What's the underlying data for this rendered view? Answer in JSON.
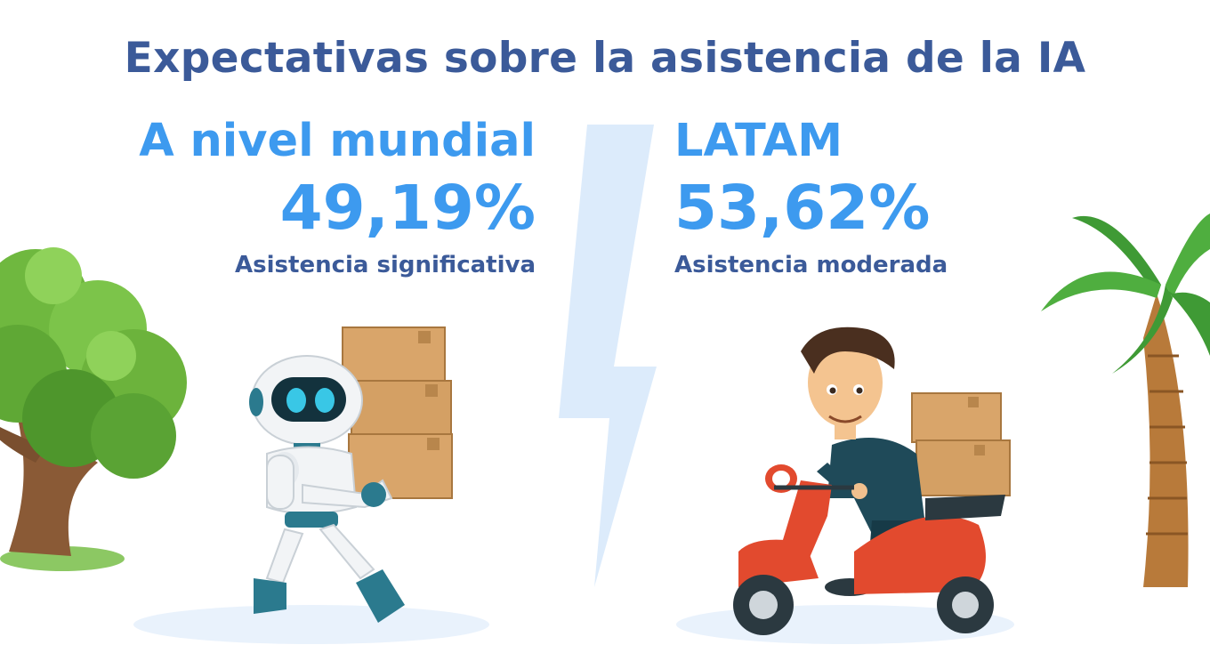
{
  "title": "Expectativas sobre la asistencia de la IA",
  "colors": {
    "title": "#3b5a99",
    "accent": "#3d9aef",
    "subtitle": "#3b5a99",
    "bolt": "#dcebfb"
  },
  "left": {
    "region": "A nivel mundial",
    "value": "49,19%",
    "label": "Asistencia significativa"
  },
  "right": {
    "region": "LATAM",
    "value": "53,62%",
    "label": "Asistencia moderada"
  },
  "illustrations": [
    "tree-icon",
    "robot-icon",
    "boxes-icon",
    "lightning-bolt-icon",
    "delivery-person-icon",
    "scooter-icon",
    "palm-tree-icon"
  ]
}
